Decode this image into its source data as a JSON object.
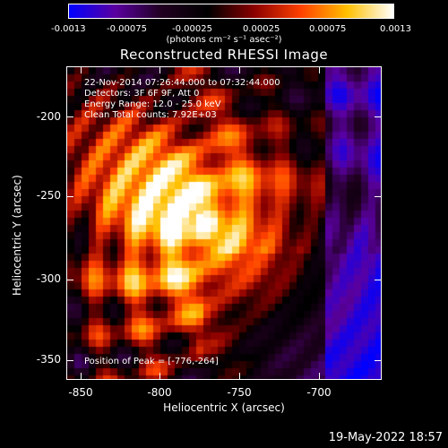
{
  "colorbar": {
    "ticks": [
      "-0.0013",
      "-0.00075",
      "-0.00025",
      "0.00025",
      "0.00075",
      "0.0013"
    ],
    "units": "(photons cm⁻² s⁻¹ asec⁻²)"
  },
  "title": "Reconstructed RHESSI Image",
  "info": {
    "line1": "22-Nov-2014 07:26:44.000 to 07:32:44.000",
    "line2": "Detectors: 3F 6F 9F, Att 0",
    "line3": "Energy Range: 12.0 - 25.0 keV",
    "line4": "Clean     Total counts: 7.92E+03"
  },
  "peak": "Position of Peak = [-776,-264]",
  "axes": {
    "xlabel": "Heliocentric X (arcsec)",
    "ylabel": "Heliocentric Y (arcsec)",
    "xticks": [
      "-850",
      "-800",
      "-750",
      "-700"
    ],
    "yticks": [
      "-200",
      "-250",
      "-300",
      "-350"
    ]
  },
  "footer_date": "19-May-2022 18:57",
  "chart_data": {
    "type": "heatmap",
    "title": "Reconstructed RHESSI Image",
    "xlabel": "Heliocentric X (arcsec)",
    "ylabel": "Heliocentric Y (arcsec)",
    "xlim": [
      -863,
      -663
    ],
    "ylim": [
      -364,
      -164
    ],
    "peak_position": [
      -776,
      -264
    ],
    "colorscale": [
      "#0000ff",
      "#5a00a0",
      "#200020",
      "#000000",
      "#8b0000",
      "#ff4000",
      "#ffc000",
      "#ffffff"
    ],
    "zrange": [
      -0.0013,
      0.0013
    ]
  }
}
